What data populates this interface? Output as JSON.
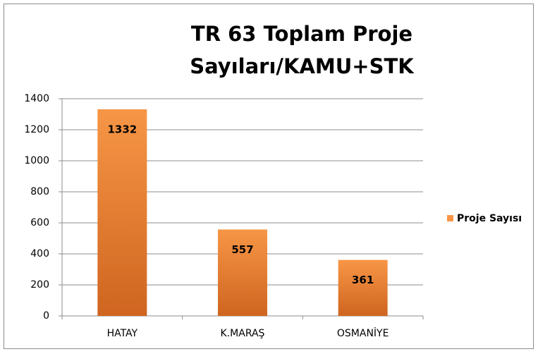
{
  "chart_data": {
    "type": "bar",
    "title": [
      "TR 63 Toplam Proje",
      "Sayıları/KAMU+STK"
    ],
    "categories": [
      "HATAY",
      "K.MARAŞ",
      "OSMANİYE"
    ],
    "series": [
      {
        "name": "Proje Sayısı",
        "color": "#f79646",
        "values": [
          1332,
          557,
          361
        ]
      }
    ],
    "ylim": [
      0,
      1400
    ],
    "yticks": [
      0,
      200,
      400,
      600,
      800,
      1000,
      1200,
      1400
    ],
    "grid": true,
    "legend": "right"
  }
}
